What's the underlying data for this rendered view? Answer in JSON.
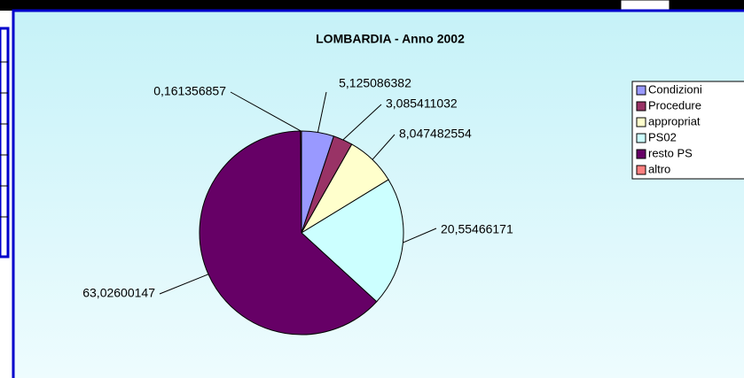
{
  "chart_data": {
    "type": "pie",
    "title": "LOMBARDIA - Anno 2002",
    "categories": [
      "Condizioni",
      "Procedure",
      "appropriat",
      "PS02",
      "resto PS",
      "altro"
    ],
    "values": [
      5.125086382,
      3.085411032,
      8.047482554,
      20.55466171,
      63.02600147,
      0.161356857
    ],
    "value_labels": [
      "5,125086382",
      "3,085411032",
      "8,047482554",
      "20,55466171",
      "63,02600147",
      "0,161356857"
    ],
    "colors": [
      "#9999ff",
      "#993366",
      "#ffffcc",
      "#ccffff",
      "#660066",
      "#ff8080"
    ],
    "legend": "right"
  }
}
